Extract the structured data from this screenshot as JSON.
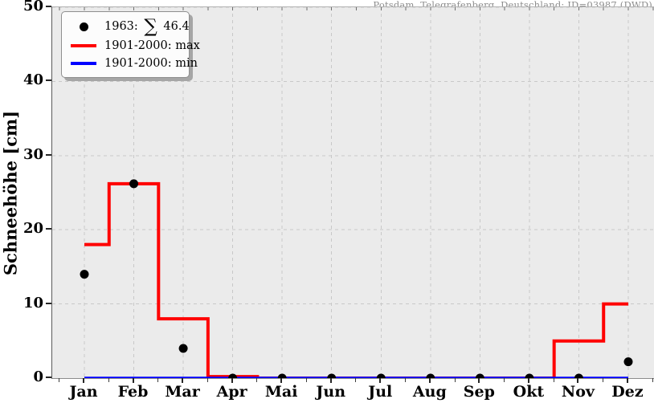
{
  "header": {
    "station_label": "Potsdam, Telegrafenberg, Deutschland: ID=03987 (DWD)"
  },
  "legend": {
    "items": [
      {
        "id": "series-1963",
        "marker": "dot",
        "color": "#000000",
        "parts": [
          "1963:",
          "∑",
          "46.4"
        ]
      },
      {
        "id": "series-max",
        "marker": "line",
        "color": "#ff0000",
        "label": "1901-2000: max"
      },
      {
        "id": "series-min",
        "marker": "line",
        "color": "#0000ff",
        "label": "1901-2000: min"
      }
    ]
  },
  "chart_data": {
    "type": "line",
    "title": "Potsdam, Telegrafenberg, Deutschland: ID=03987 (DWD)",
    "xlabel": "",
    "ylabel": "Schneehöhe [cm]",
    "ylim": [
      0,
      50
    ],
    "yticks": [
      0,
      10,
      20,
      30,
      40,
      50
    ],
    "grid": "dashed",
    "legend_position": "upper left",
    "categories": [
      "Jan",
      "Feb",
      "Mar",
      "Apr",
      "Mai",
      "Jun",
      "Jul",
      "Aug",
      "Sep",
      "Okt",
      "Nov",
      "Dez"
    ],
    "series": [
      {
        "name": "1963",
        "legend_label": "1963: ∑ 46.4",
        "style": "scatter",
        "color": "#000000",
        "annual_sum": 46.4,
        "values": [
          14,
          26.2,
          4,
          0,
          0,
          0,
          0,
          0,
          0,
          0,
          0,
          2.2
        ]
      },
      {
        "name": "1901-2000: max",
        "style": "step-mid",
        "color": "#ff0000",
        "values": [
          18,
          26.2,
          8,
          0.2,
          0,
          0,
          0,
          0,
          0,
          0,
          5,
          10
        ]
      },
      {
        "name": "1901-2000: min",
        "style": "step-mid",
        "color": "#0000ff",
        "values": [
          0,
          0,
          0,
          0,
          0,
          0,
          0,
          0,
          0,
          0,
          0,
          0
        ]
      }
    ]
  }
}
